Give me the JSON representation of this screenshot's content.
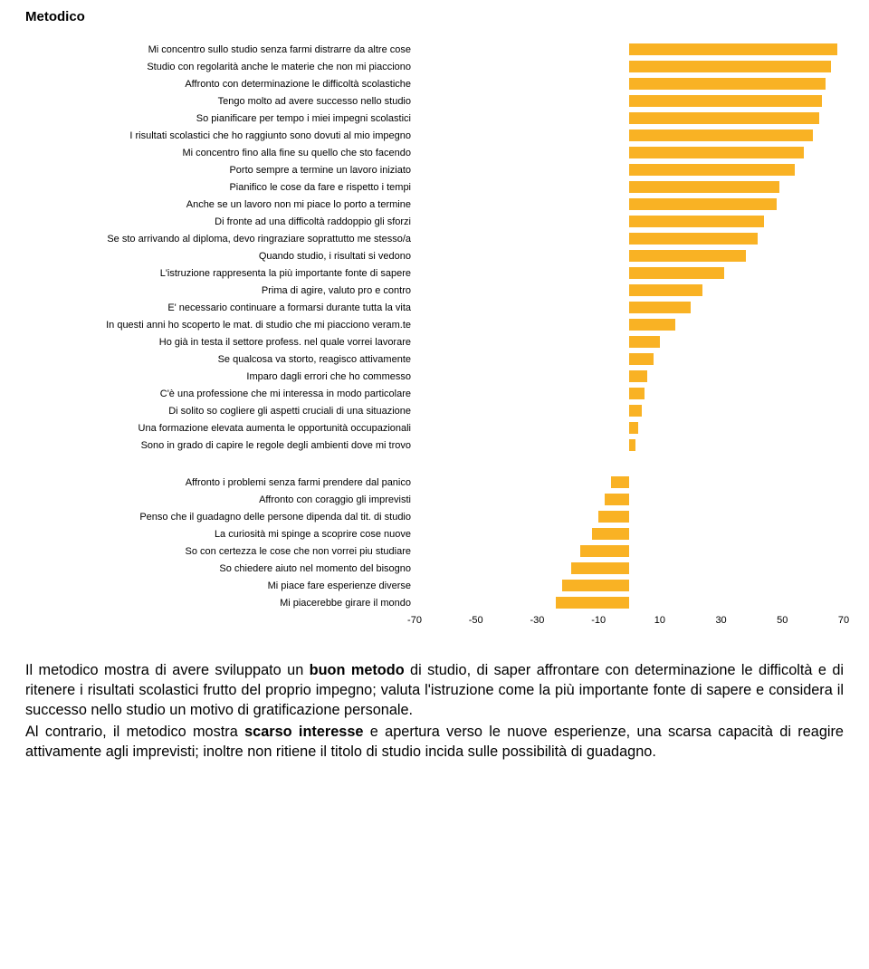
{
  "title": "Metodico",
  "chart": {
    "type": "bar",
    "xmin": -70,
    "xmax": 70,
    "ticks": [
      -70,
      -50,
      -30,
      -10,
      10,
      30,
      50,
      70
    ],
    "bar_color": "#f9b224",
    "bg_color": "#ffffff",
    "label_fontsize": 11,
    "tick_fontsize": 11,
    "positive_items": [
      {
        "label": "Mi concentro sullo studio senza farmi distrarre da altre cose",
        "value": 68
      },
      {
        "label": "Studio con regolarità anche le materie che non mi piacciono",
        "value": 66
      },
      {
        "label": "Affronto con determinazione le difficoltà scolastiche",
        "value": 64
      },
      {
        "label": "Tengo molto ad avere successo nello studio",
        "value": 63
      },
      {
        "label": "So pianificare per tempo i miei impegni scolastici",
        "value": 62
      },
      {
        "label": "I risultati scolastici che ho raggiunto sono dovuti al mio impegno",
        "value": 60
      },
      {
        "label": "Mi concentro fino alla fine su quello che sto facendo",
        "value": 57
      },
      {
        "label": "Porto sempre a termine un lavoro iniziato",
        "value": 54
      },
      {
        "label": "Pianifico le cose da fare e rispetto i tempi",
        "value": 49
      },
      {
        "label": "Anche se un lavoro non mi piace lo porto a termine",
        "value": 48
      },
      {
        "label": "Di fronte ad una difficoltà raddoppio gli sforzi",
        "value": 44
      },
      {
        "label": "Se sto arrivando al diploma, devo ringraziare soprattutto me stesso/a",
        "value": 42
      },
      {
        "label": "Quando studio, i risultati si vedono",
        "value": 38
      },
      {
        "label": "L'istruzione rappresenta la più importante fonte di sapere",
        "value": 31
      },
      {
        "label": "Prima di agire, valuto pro e contro",
        "value": 24
      },
      {
        "label": "E' necessario continuare a formarsi durante tutta la vita",
        "value": 20
      },
      {
        "label": "In questi anni ho scoperto le mat. di studio che mi piacciono veram.te",
        "value": 15
      },
      {
        "label": "Ho già in testa il settore profess. nel quale vorrei lavorare",
        "value": 10
      },
      {
        "label": "Se qualcosa va storto, reagisco attivamente",
        "value": 8
      },
      {
        "label": "Imparo dagli errori che ho commesso",
        "value": 6
      },
      {
        "label": "C'è una professione che mi interessa in modo particolare",
        "value": 5
      },
      {
        "label": "Di solito so cogliere gli aspetti cruciali di una situazione",
        "value": 4
      },
      {
        "label": "Una formazione elevata aumenta le opportunità occupazionali",
        "value": 3
      },
      {
        "label": "Sono in grado di capire le regole degli ambienti dove mi trovo",
        "value": 2
      }
    ],
    "negative_items": [
      {
        "label": "Affronto i problemi senza farmi prendere dal panico",
        "value": -6
      },
      {
        "label": "Affronto con coraggio gli imprevisti",
        "value": -8
      },
      {
        "label": "Penso che il guadagno delle persone dipenda dal tit. di studio",
        "value": -10
      },
      {
        "label": "La curiosità mi spinge a scoprire cose nuove",
        "value": -12
      },
      {
        "label": "So con certezza le cose che non vorrei piu studiare",
        "value": -16
      },
      {
        "label": "So chiedere aiuto nel momento del bisogno",
        "value": -19
      },
      {
        "label": "Mi piace fare esperienze diverse",
        "value": -22
      },
      {
        "label": "Mi piacerebbe girare il mondo",
        "value": -24
      }
    ]
  },
  "paragraphs": {
    "p1_a": "Il metodico mostra di avere sviluppato un ",
    "p1_b1": "buon metodo",
    "p1_c": " di studio, di saper affrontare con determinazione le difficoltà e di ritenere i risultati scolastici frutto del proprio impegno; valuta l'istruzione come la più importante fonte di sapere e considera il successo nello studio un motivo di gratificazione personale.",
    "p2_a": "Al contrario, il metodico mostra ",
    "p2_b1": "scarso interesse",
    "p2_c": " e apertura verso le nuove esperienze, una scarsa capacità di reagire attivamente agli imprevisti; inoltre non ritiene il titolo di studio incida sulle possibilità di guadagno."
  }
}
